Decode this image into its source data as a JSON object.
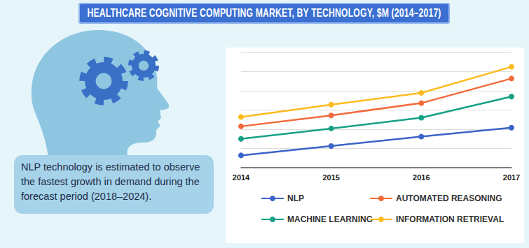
{
  "chart_data": {
    "type": "line",
    "title": "HEALTHCARE COGNITIVE COMPUTING MARKET, BY TECHNOLOGY, $M (2014–2017)",
    "annotation": "NLP technology is estimated to observe the fastest growth in demand during the forecast period (2018–2024).",
    "categories": [
      "2014",
      "2015",
      "2016",
      "2017"
    ],
    "series": [
      {
        "name": "NLP",
        "color": "#3b63c9",
        "values": [
          0.64,
          1.13,
          1.62,
          2.08
        ]
      },
      {
        "name": "AUTOMATED REASONING",
        "color": "#f26a3b",
        "values": [
          2.15,
          2.72,
          3.36,
          4.64
        ]
      },
      {
        "name": "MACHINE LEARNING",
        "color": "#17a086",
        "values": [
          1.5,
          2.04,
          2.6,
          3.7
        ]
      },
      {
        "name": "INFORMATION RETRIEVAL",
        "color": "#fdbb1f",
        "values": [
          2.64,
          3.28,
          3.89,
          5.25
        ]
      }
    ],
    "ylim": [
      0,
      6
    ],
    "yticks": [
      0,
      1,
      2,
      3,
      4,
      5,
      6
    ],
    "grid": true,
    "tick_labels": "x",
    "marker": "circle"
  }
}
